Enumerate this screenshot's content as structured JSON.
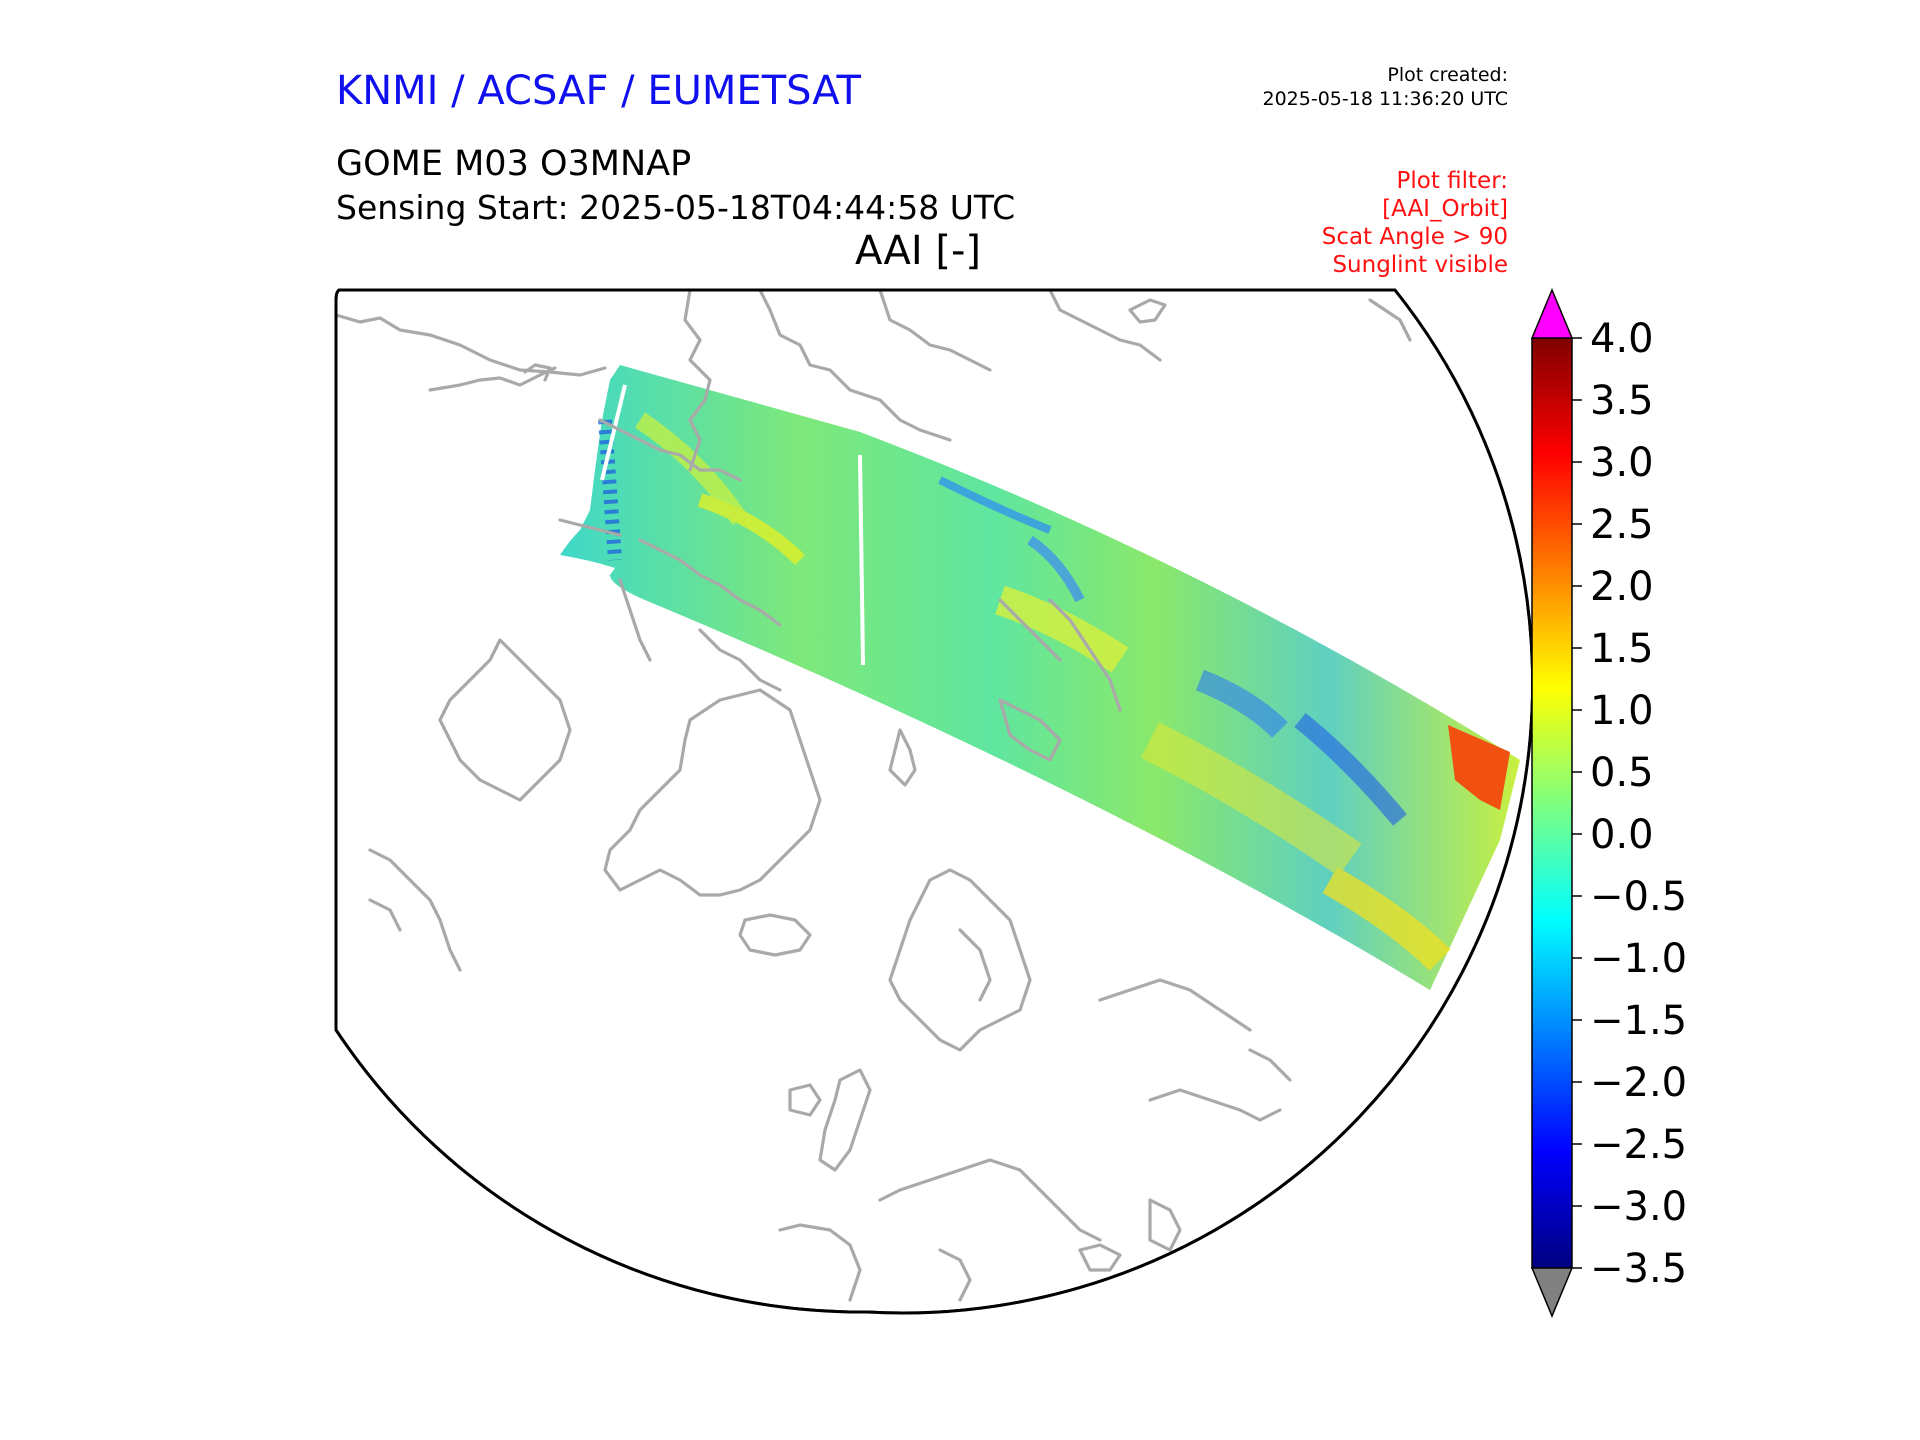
{
  "header": {
    "agency": "KNMI / ACSAF / EUMETSAT",
    "plot_created_label": "Plot created:",
    "plot_created_value": "2025-05-18 11:36:20 UTC",
    "product": "GOME M03 O3MNAP",
    "sensing_start": "Sensing Start: 2025-05-18T04:44:58 UTC",
    "variable_title": "AAI [-]"
  },
  "filters": [
    "Plot filter:",
    "[AAI_Orbit]",
    "Scat Angle > 90",
    "Sunglint visible"
  ],
  "colorbar": {
    "min": -3.5,
    "max": 4.0,
    "ticks": [
      {
        "value": 4.0,
        "label": "4.0"
      },
      {
        "value": 3.5,
        "label": "3.5"
      },
      {
        "value": 3.0,
        "label": "3.0"
      },
      {
        "value": 2.5,
        "label": "2.5"
      },
      {
        "value": 2.0,
        "label": "2.0"
      },
      {
        "value": 1.5,
        "label": "1.5"
      },
      {
        "value": 1.0,
        "label": "1.0"
      },
      {
        "value": 0.5,
        "label": "0.5"
      },
      {
        "value": 0.0,
        "label": "0.0"
      },
      {
        "value": -0.5,
        "label": "−0.5"
      },
      {
        "value": -1.0,
        "label": "−1.0"
      },
      {
        "value": -1.5,
        "label": "−1.5"
      },
      {
        "value": -2.0,
        "label": "−2.0"
      },
      {
        "value": -2.5,
        "label": "−2.5"
      },
      {
        "value": -3.0,
        "label": "−3.0"
      },
      {
        "value": -3.5,
        "label": "−3.5"
      }
    ],
    "colormap": [
      "#00007f",
      "#0000ff",
      "#007fff",
      "#00ffff",
      "#7fff7f",
      "#ffff00",
      "#ff7f00",
      "#ff0000",
      "#7f0000"
    ],
    "over_color": "#ff00ff",
    "under_color": "#808080"
  },
  "map": {
    "coastline_color": "#a9a9a9",
    "boundary_color": "#000000",
    "swath_base_color": "#4fe8a8"
  }
}
